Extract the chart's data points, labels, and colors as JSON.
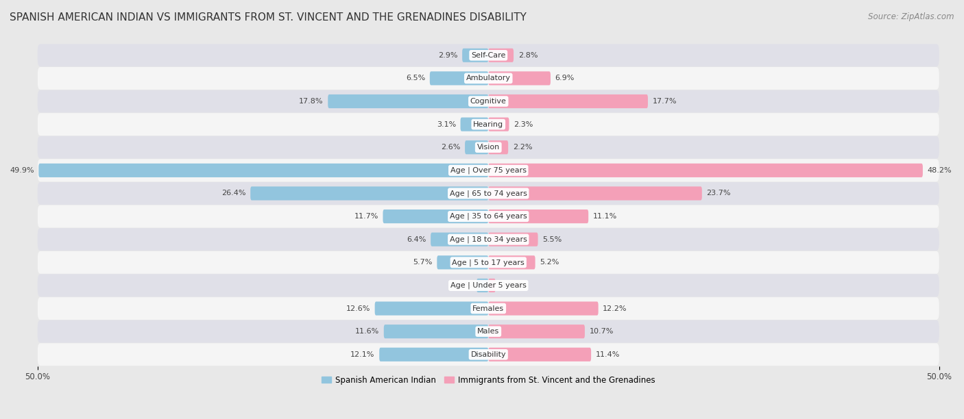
{
  "title": "SPANISH AMERICAN INDIAN VS IMMIGRANTS FROM ST. VINCENT AND THE GRENADINES DISABILITY",
  "source": "Source: ZipAtlas.com",
  "categories": [
    "Disability",
    "Males",
    "Females",
    "Age | Under 5 years",
    "Age | 5 to 17 years",
    "Age | 18 to 34 years",
    "Age | 35 to 64 years",
    "Age | 65 to 74 years",
    "Age | Over 75 years",
    "Vision",
    "Hearing",
    "Cognitive",
    "Ambulatory",
    "Self-Care"
  ],
  "left_values": [
    12.1,
    11.6,
    12.6,
    1.3,
    5.7,
    6.4,
    11.7,
    26.4,
    49.9,
    2.6,
    3.1,
    17.8,
    6.5,
    2.9
  ],
  "right_values": [
    11.4,
    10.7,
    12.2,
    0.79,
    5.2,
    5.5,
    11.1,
    23.7,
    48.2,
    2.2,
    2.3,
    17.7,
    6.9,
    2.8
  ],
  "left_color": "#92C5DE",
  "right_color": "#F4A0B8",
  "left_label": "Spanish American Indian",
  "right_label": "Immigrants from St. Vincent and the Grenadines",
  "axis_max": 50.0,
  "background_color": "#e8e8e8",
  "row_bg_even": "#f5f5f5",
  "row_bg_odd": "#e0e0e8",
  "title_fontsize": 11,
  "source_fontsize": 8.5,
  "label_fontsize": 8,
  "value_fontsize": 8
}
